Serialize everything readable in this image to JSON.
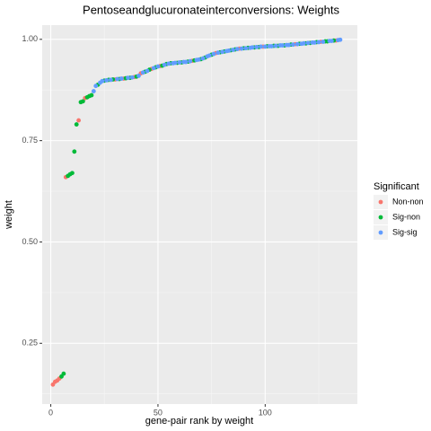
{
  "chart_data": {
    "type": "scatter",
    "title": "Pentoseandglucuronateinterconversions: Weights",
    "x_label": "gene-pair rank by weight",
    "y_label": "weight",
    "legend_title": "Significant",
    "legend_position": "right",
    "grid": true,
    "xlim": [
      -4,
      143
    ],
    "ylim": [
      0.1,
      1.035
    ],
    "xticks": [
      0,
      50,
      100
    ],
    "yticks": [
      {
        "value": 0.25,
        "label": "0.25"
      },
      {
        "value": 0.5,
        "label": "0.50"
      },
      {
        "value": 0.75,
        "label": "0.75"
      },
      {
        "value": 1,
        "label": "1.00"
      }
    ],
    "series": [
      {
        "name": "Non-non",
        "color": "#f8766d",
        "x": [
          1,
          2,
          3,
          4,
          7,
          13,
          16,
          30,
          34,
          39,
          42,
          47,
          51,
          66,
          77,
          88,
          99,
          114,
          126,
          133
        ],
        "values": [
          0.148,
          0.155,
          0.158,
          0.163,
          0.66,
          0.8,
          0.855,
          0.901,
          0.903,
          0.907,
          0.916,
          0.927,
          0.934,
          0.947,
          0.966,
          0.977,
          0.982,
          0.988,
          0.994,
          0.997
        ]
      },
      {
        "name": "Sig-non",
        "color": "#00ba38",
        "x": [
          5,
          6,
          8,
          9,
          10,
          11,
          12,
          14,
          15,
          17,
          18,
          19,
          22,
          25,
          27,
          29,
          32,
          35,
          37,
          40,
          44,
          46,
          49,
          52,
          54,
          56,
          59,
          61,
          64,
          67,
          70,
          72,
          75,
          79,
          81,
          84,
          86,
          90,
          92,
          95,
          97,
          101,
          104,
          106,
          109,
          112,
          116,
          119,
          121,
          124,
          128,
          129,
          132
        ],
        "values": [
          0.168,
          0.175,
          0.663,
          0.667,
          0.67,
          0.723,
          0.79,
          0.845,
          0.847,
          0.857,
          0.86,
          0.862,
          0.888,
          0.898,
          0.9,
          0.901,
          0.902,
          0.904,
          0.905,
          0.908,
          0.92,
          0.925,
          0.931,
          0.935,
          0.939,
          0.941,
          0.942,
          0.943,
          0.945,
          0.948,
          0.951,
          0.955,
          0.962,
          0.968,
          0.97,
          0.973,
          0.975,
          0.978,
          0.979,
          0.98,
          0.981,
          0.983,
          0.984,
          0.984,
          0.985,
          0.987,
          0.989,
          0.99,
          0.991,
          0.993,
          0.995,
          0.995,
          0.997
        ]
      },
      {
        "name": "Sig-sig",
        "color": "#619cff",
        "x": [
          20,
          21,
          23,
          24,
          26,
          28,
          31,
          33,
          36,
          38,
          41,
          43,
          45,
          48,
          50,
          53,
          55,
          57,
          58,
          60,
          62,
          63,
          65,
          68,
          69,
          71,
          73,
          74,
          76,
          78,
          80,
          82,
          83,
          85,
          87,
          89,
          91,
          93,
          94,
          96,
          98,
          100,
          102,
          103,
          105,
          107,
          108,
          110,
          111,
          113,
          115,
          117,
          118,
          120,
          122,
          123,
          125,
          127,
          130,
          131,
          134,
          135
        ],
        "values": [
          0.872,
          0.885,
          0.893,
          0.897,
          0.899,
          0.9,
          0.902,
          0.903,
          0.905,
          0.906,
          0.91,
          0.918,
          0.922,
          0.929,
          0.933,
          0.937,
          0.94,
          0.941,
          0.942,
          0.943,
          0.944,
          0.944,
          0.946,
          0.949,
          0.95,
          0.953,
          0.958,
          0.96,
          0.964,
          0.967,
          0.969,
          0.971,
          0.972,
          0.974,
          0.976,
          0.977,
          0.978,
          0.979,
          0.98,
          0.981,
          0.982,
          0.982,
          0.983,
          0.983,
          0.984,
          0.985,
          0.985,
          0.986,
          0.986,
          0.987,
          0.988,
          0.989,
          0.99,
          0.991,
          0.992,
          0.992,
          0.993,
          0.994,
          0.996,
          0.996,
          0.998,
          0.999
        ]
      }
    ]
  }
}
